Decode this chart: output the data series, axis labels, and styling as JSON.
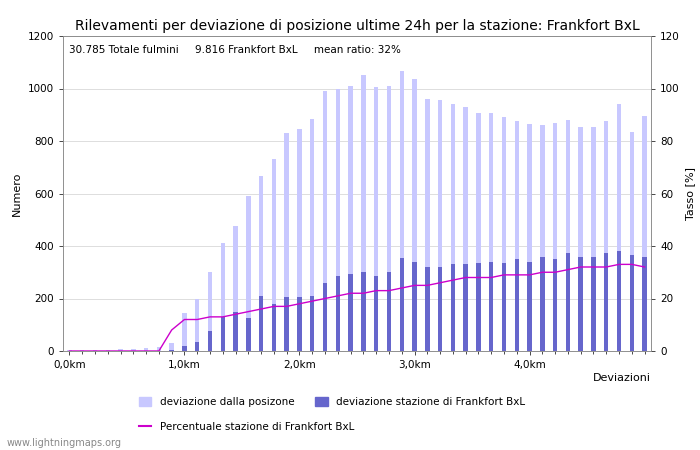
{
  "title": "Rilevamenti per deviazione di posizione ultime 24h per la stazione: Frankfort BxL",
  "subtitle": "30.785 Totale fulmini     9.816 Frankfort BxL     mean ratio: 32%",
  "xlabel": "Deviazioni",
  "ylabel_left": "Numero",
  "ylabel_right": "Tasso [%]",
  "ylim_left": [
    0,
    1200
  ],
  "ylim_right": [
    0,
    120
  ],
  "xtick_labels": [
    "0,0km",
    "1,0km",
    "2,0km",
    "3,0km",
    "4,0km"
  ],
  "watermark": "www.lightningmaps.org",
  "bar_total": [
    5,
    3,
    2,
    4,
    8,
    6,
    10,
    14,
    30,
    145,
    200,
    300,
    410,
    475,
    590,
    665,
    730,
    830,
    845,
    885,
    990,
    1000,
    1010,
    1050,
    1005,
    1010,
    1065,
    1035,
    960,
    955,
    940,
    930,
    905,
    905,
    890,
    875,
    865,
    860,
    870,
    880,
    855,
    855,
    875,
    940,
    835,
    895
  ],
  "bar_station": [
    0,
    0,
    0,
    0,
    0,
    0,
    0,
    0,
    5,
    20,
    35,
    75,
    130,
    150,
    125,
    210,
    180,
    205,
    205,
    210,
    260,
    285,
    295,
    300,
    285,
    300,
    355,
    340,
    320,
    320,
    330,
    330,
    335,
    340,
    335,
    350,
    340,
    360,
    350,
    375,
    360,
    360,
    375,
    380,
    365,
    360
  ],
  "line_ratio": [
    0,
    0,
    0,
    0,
    0,
    0,
    0,
    0,
    8,
    12,
    12,
    13,
    13,
    14,
    15,
    16,
    17,
    17,
    18,
    19,
    20,
    21,
    22,
    22,
    23,
    23,
    24,
    25,
    25,
    26,
    27,
    28,
    28,
    28,
    29,
    29,
    29,
    30,
    30,
    31,
    32,
    32,
    32,
    33,
    33,
    32
  ],
  "color_total": "#c8c8ff",
  "color_station": "#6666cc",
  "color_line": "#cc00cc",
  "legend_total": "deviazione dalla posizone",
  "legend_station": "deviazione stazione di Frankfort BxL",
  "legend_line": "Percentuale stazione di Frankfort BxL",
  "title_fontsize": 10,
  "subtitle_fontsize": 7.5,
  "axis_fontsize": 8,
  "tick_fontsize": 7.5,
  "legend_fontsize": 7.5,
  "watermark_fontsize": 7
}
